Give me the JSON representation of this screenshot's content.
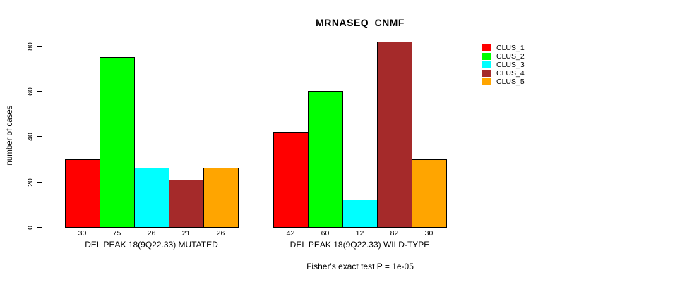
{
  "chart_data": {
    "type": "bar",
    "title": "MRNASEQ_CNMF",
    "ylabel": "number of cases",
    "xlabel": "",
    "footnote": "Fisher's exact test P = 1e-05",
    "ylim": [
      0,
      80
    ],
    "yticks": [
      0,
      20,
      40,
      60,
      80
    ],
    "grid": false,
    "bar_value_labels": true,
    "legend_position": "right-outside-top",
    "categories": [
      "DEL PEAK 18(9Q22.33) MUTATED",
      "DEL PEAK 18(9Q22.33) WILD-TYPE"
    ],
    "series": [
      {
        "name": "CLUS_1",
        "color": "#FF0000",
        "values": [
          30,
          42
        ]
      },
      {
        "name": "CLUS_2",
        "color": "#00FF00",
        "values": [
          75,
          60
        ]
      },
      {
        "name": "CLUS_3",
        "color": "#00FFFF",
        "values": [
          26,
          12
        ]
      },
      {
        "name": "CLUS_4",
        "color": "#A52A2A",
        "values": [
          21,
          82
        ]
      },
      {
        "name": "CLUS_5",
        "color": "#FFA500",
        "values": [
          26,
          30
        ]
      }
    ]
  }
}
